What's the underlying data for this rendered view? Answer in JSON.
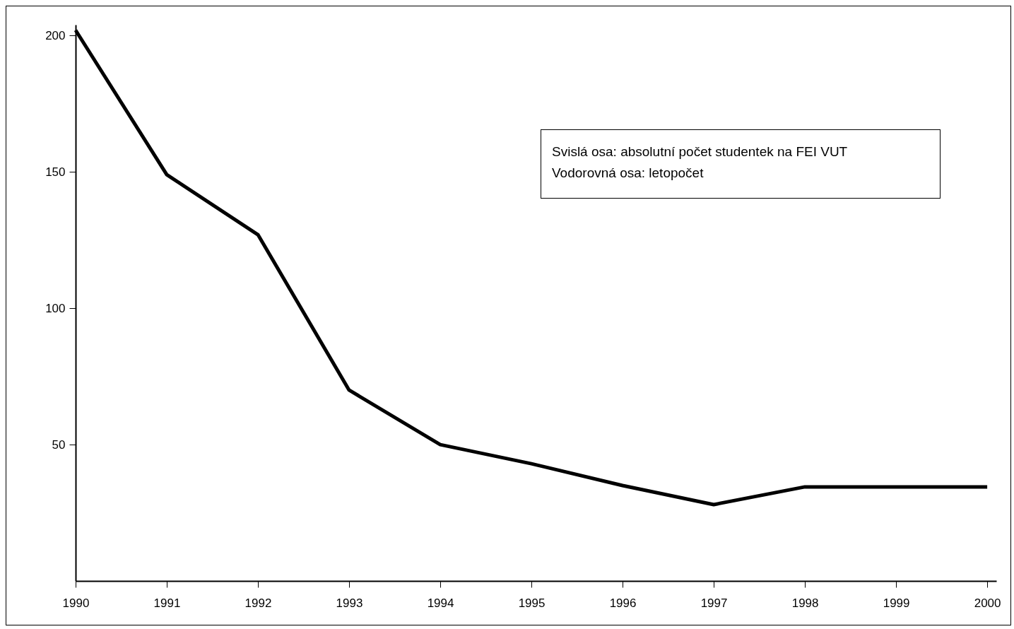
{
  "chart_data": {
    "type": "line",
    "annotations": [
      "Svislá osa: absolutní počet studentek na FEI VUT",
      "Vodorovná osa: letopočet"
    ],
    "x": [
      1990,
      1991,
      1992,
      1993,
      1994,
      1995,
      1996,
      1997,
      1998,
      1999,
      2000
    ],
    "series": [
      {
        "color": "#000000",
        "values": [
          202,
          149,
          127,
          70,
          50,
          43,
          35,
          28,
          34.5,
          34.5,
          34.5
        ]
      }
    ],
    "xlim": [
      1990,
      2000.1
    ],
    "xticks": [
      1990,
      1991,
      1992,
      1993,
      1994,
      1995,
      1996,
      1997,
      1998,
      1999,
      2000
    ],
    "ylim": [
      0,
      204
    ],
    "yticks": [
      50,
      100,
      150,
      200
    ]
  }
}
